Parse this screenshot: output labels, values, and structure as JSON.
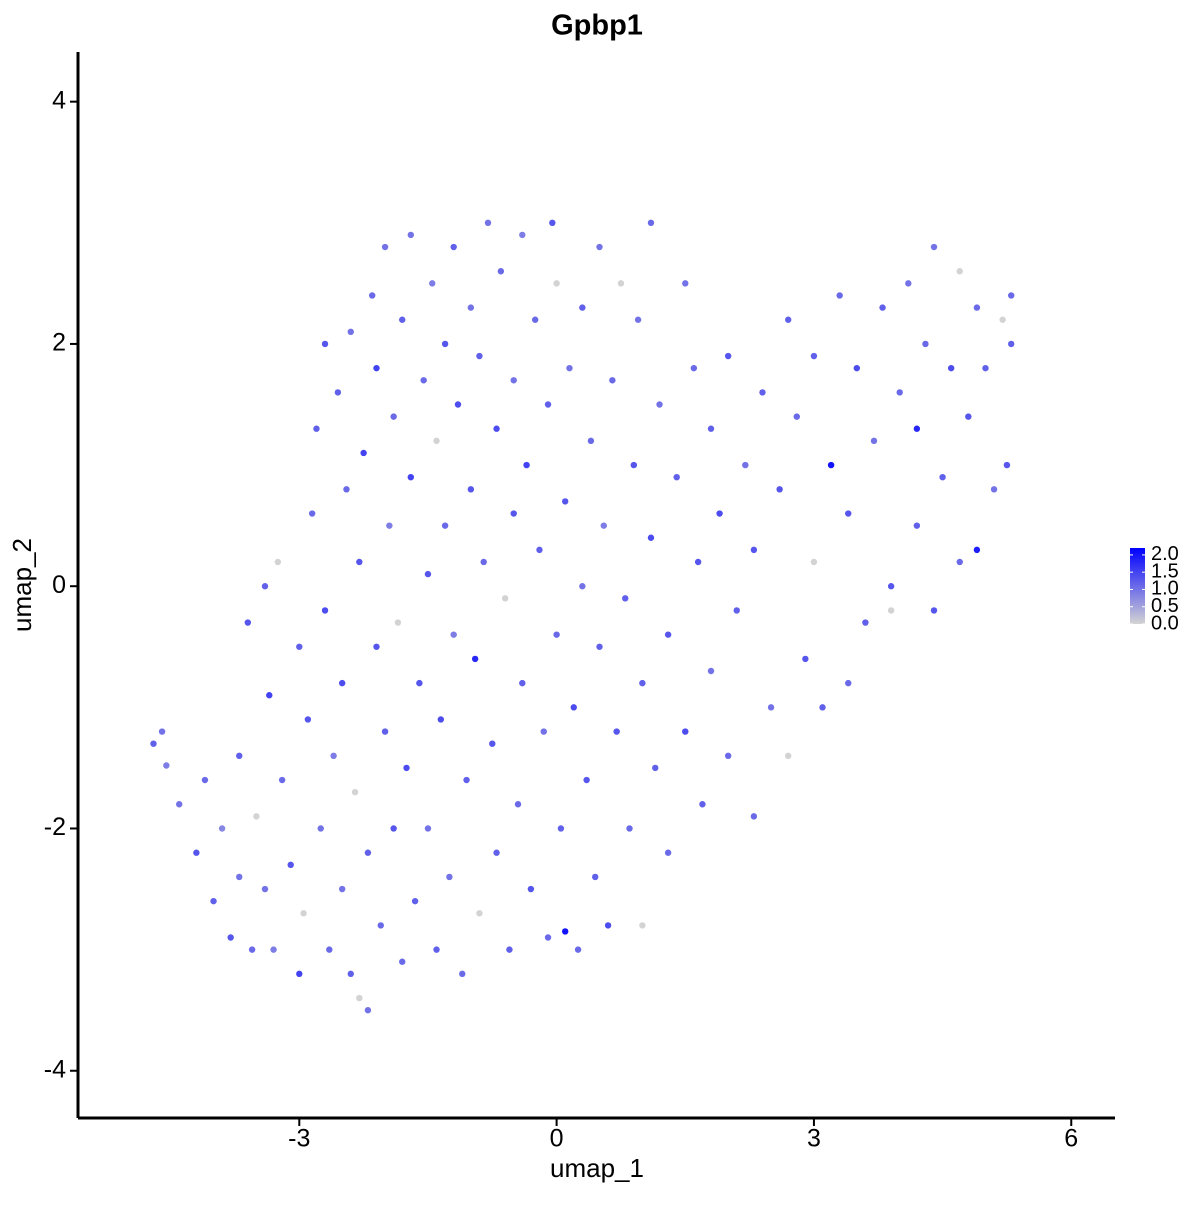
{
  "chart_data": {
    "type": "scatter",
    "title": "Gpbp1",
    "xlabel": "umap_1",
    "ylabel": "umap_2",
    "xlim": [
      -5.58,
      6.51
    ],
    "ylim": [
      -4.39,
      4.41
    ],
    "xticks": [
      -3,
      0,
      3,
      6
    ],
    "yticks": [
      -4,
      -2,
      0,
      2,
      4
    ],
    "color_low": "#d3d3d3",
    "color_high": "#0000ff",
    "colorbar": {
      "lim": [
        0,
        2.2
      ],
      "ticks": [
        {
          "value": 0,
          "label": "0.0"
        },
        {
          "value": 0.5,
          "label": "0.5"
        },
        {
          "value": 1,
          "label": "1.0"
        },
        {
          "value": 1.5,
          "label": "1.5"
        },
        {
          "value": 2,
          "label": "2.0"
        }
      ]
    },
    "x": [
      -4.7,
      -4.6,
      -4.55,
      -4.4,
      -4.2,
      -4.1,
      -4.0,
      -3.9,
      -3.8,
      -3.7,
      -3.7,
      -3.6,
      -3.55,
      -3.5,
      -3.4,
      -3.4,
      -3.35,
      -3.3,
      -3.25,
      -3.2,
      -3.1,
      -3.0,
      -3.0,
      -2.95,
      -2.9,
      -2.85,
      -2.8,
      -2.75,
      -2.7,
      -2.7,
      -2.65,
      -2.6,
      -2.55,
      -2.5,
      -2.5,
      -2.45,
      -2.4,
      -2.4,
      -2.35,
      -2.3,
      -2.3,
      -2.25,
      -2.2,
      -2.2,
      -2.15,
      -2.1,
      -2.1,
      -2.05,
      -2.0,
      -2.0,
      -1.95,
      -1.9,
      -1.9,
      -1.85,
      -1.8,
      -1.8,
      -1.75,
      -1.7,
      -1.7,
      -1.65,
      -1.6,
      -1.55,
      -1.5,
      -1.5,
      -1.45,
      -1.4,
      -1.4,
      -1.35,
      -1.3,
      -1.3,
      -1.25,
      -1.2,
      -1.2,
      -1.15,
      -1.1,
      -1.05,
      -1.0,
      -1.0,
      -0.95,
      -0.9,
      -0.9,
      -0.85,
      -0.8,
      -0.75,
      -0.7,
      -0.7,
      -0.65,
      -0.6,
      -0.55,
      -0.5,
      -0.5,
      -0.45,
      -0.4,
      -0.4,
      -0.35,
      -0.3,
      -0.25,
      -0.2,
      -0.15,
      -0.1,
      -0.1,
      -0.05,
      0.0,
      0.0,
      0.05,
      0.1,
      0.1,
      0.15,
      0.2,
      0.25,
      0.3,
      0.3,
      0.35,
      0.4,
      0.45,
      0.5,
      0.5,
      0.55,
      0.6,
      0.65,
      0.7,
      0.75,
      0.8,
      0.85,
      0.9,
      0.95,
      1.0,
      1.0,
      1.1,
      1.1,
      1.15,
      1.2,
      1.3,
      1.3,
      1.4,
      1.5,
      1.5,
      1.6,
      1.65,
      1.7,
      1.8,
      1.8,
      1.9,
      2.0,
      2.0,
      2.1,
      2.2,
      2.3,
      2.3,
      2.4,
      2.5,
      2.6,
      2.7,
      2.7,
      2.8,
      2.9,
      3.0,
      3.0,
      3.1,
      3.2,
      3.3,
      3.4,
      3.4,
      3.5,
      3.6,
      3.7,
      3.8,
      3.9,
      3.9,
      4.0,
      4.1,
      4.2,
      4.2,
      4.3,
      4.4,
      4.4,
      4.5,
      4.6,
      4.7,
      4.7,
      4.8,
      4.9,
      4.9,
      5.0,
      5.1,
      5.2,
      5.25,
      5.3,
      5.3
    ],
    "y": [
      -1.3,
      -1.2,
      -1.48,
      -1.8,
      -2.2,
      -1.6,
      -2.6,
      -2.0,
      -2.9,
      -2.4,
      -1.4,
      -0.3,
      -3.0,
      -1.9,
      -2.5,
      0.0,
      -0.9,
      -3.0,
      0.2,
      -1.6,
      -2.3,
      -0.5,
      -3.2,
      -2.7,
      -1.1,
      0.6,
      1.3,
      -2.0,
      -0.2,
      2.0,
      -3.0,
      -1.4,
      1.6,
      -0.8,
      -2.5,
      0.8,
      -3.2,
      2.1,
      -1.7,
      -3.4,
      0.2,
      1.1,
      -2.2,
      -3.5,
      2.4,
      -0.5,
      1.8,
      -2.8,
      -1.2,
      2.8,
      0.5,
      -2.0,
      1.4,
      -0.3,
      -3.1,
      2.2,
      -1.5,
      0.9,
      2.9,
      -2.6,
      -0.8,
      1.7,
      0.1,
      -2.0,
      2.5,
      -3.0,
      1.2,
      -1.1,
      0.5,
      2.0,
      -2.4,
      -0.4,
      2.8,
      1.5,
      -3.2,
      -1.6,
      0.8,
      2.3,
      -0.6,
      -2.7,
      1.9,
      0.2,
      3.0,
      -1.3,
      1.3,
      -2.2,
      2.6,
      -0.1,
      -3.0,
      0.6,
      1.7,
      -1.8,
      2.9,
      -0.8,
      1.0,
      -2.5,
      2.2,
      0.3,
      -1.2,
      1.5,
      -2.9,
      3.0,
      -0.4,
      2.5,
      -2.0,
      0.7,
      -2.85,
      1.8,
      -1.0,
      -3.0,
      0.0,
      2.3,
      -1.6,
      1.2,
      -2.4,
      2.8,
      -0.5,
      0.5,
      -2.8,
      1.7,
      -1.2,
      2.5,
      -0.1,
      -2.0,
      1.0,
      2.2,
      -0.8,
      -2.8,
      0.4,
      3.0,
      -1.5,
      1.5,
      -0.4,
      -2.2,
      0.9,
      2.5,
      -1.2,
      1.8,
      0.2,
      -1.8,
      -0.7,
      1.3,
      0.6,
      -1.4,
      1.9,
      -0.2,
      1.0,
      -1.9,
      0.3,
      1.6,
      -1.0,
      0.8,
      2.2,
      -1.4,
      1.4,
      -0.6,
      1.9,
      0.2,
      -1.0,
      1.0,
      2.4,
      0.6,
      -0.8,
      1.8,
      -0.3,
      1.2,
      2.3,
      0.0,
      -0.2,
      1.6,
      2.5,
      0.5,
      1.3,
      2.0,
      -0.2,
      2.8,
      0.9,
      1.8,
      2.6,
      0.2,
      1.4,
      2.3,
      0.3,
      1.8,
      0.8,
      2.2,
      1.0,
      2.4,
      2.0
    ],
    "values": [
      1.2,
      1.0,
      0.9,
      1.0,
      1.3,
      1.1,
      1.2,
      0.8,
      1.3,
      1.0,
      1.2,
      1.3,
      1.1,
      0.0,
      1.0,
      1.2,
      1.5,
      0.9,
      0.0,
      1.1,
      1.3,
      1.2,
      1.5,
      0.0,
      1.3,
      1.1,
      1.2,
      1.0,
      1.4,
      1.3,
      1.1,
      0.9,
      1.2,
      1.4,
      1.0,
      1.1,
      1.2,
      1.0,
      0.0,
      0.0,
      1.3,
      1.5,
      1.2,
      1.0,
      1.1,
      1.3,
      1.5,
      1.1,
      1.2,
      1.0,
      0.9,
      1.3,
      1.1,
      0.0,
      1.1,
      1.2,
      1.4,
      1.5,
      1.0,
      1.2,
      1.3,
      1.1,
      1.3,
      1.0,
      0.9,
      1.2,
      0.0,
      1.4,
      1.1,
      1.3,
      1.0,
      0.9,
      1.2,
      1.4,
      1.1,
      1.2,
      1.3,
      1.0,
      1.8,
      0.0,
      1.2,
      1.1,
      1.0,
      1.3,
      1.4,
      1.2,
      1.1,
      0.0,
      1.2,
      1.3,
      1.0,
      1.1,
      0.9,
      1.2,
      1.5,
      1.3,
      1.1,
      1.2,
      1.0,
      1.2,
      1.1,
      1.3,
      1.1,
      0.0,
      1.2,
      1.3,
      2.0,
      1.0,
      1.4,
      1.1,
      1.0,
      1.2,
      1.3,
      1.1,
      1.2,
      1.0,
      1.2,
      0.9,
      1.4,
      1.1,
      1.3,
      0.0,
      1.2,
      1.1,
      1.3,
      1.0,
      1.2,
      0.0,
      1.4,
      1.1,
      1.2,
      1.0,
      1.3,
      1.1,
      1.2,
      1.0,
      1.4,
      1.1,
      1.3,
      1.2,
      1.0,
      1.2,
      1.4,
      1.1,
      1.3,
      1.2,
      1.0,
      1.1,
      1.3,
      1.2,
      1.0,
      1.3,
      1.2,
      0.0,
      1.1,
      1.3,
      1.2,
      0.0,
      1.2,
      2.0,
      1.1,
      1.3,
      1.1,
      1.4,
      1.2,
      1.0,
      1.2,
      1.3,
      0.0,
      1.1,
      1.0,
      1.2,
      1.8,
      1.1,
      1.3,
      1.0,
      1.2,
      1.4,
      0.0,
      1.1,
      1.3,
      1.1,
      1.9,
      1.2,
      1.0,
      0.0,
      1.3,
      1.1,
      1.2
    ]
  }
}
